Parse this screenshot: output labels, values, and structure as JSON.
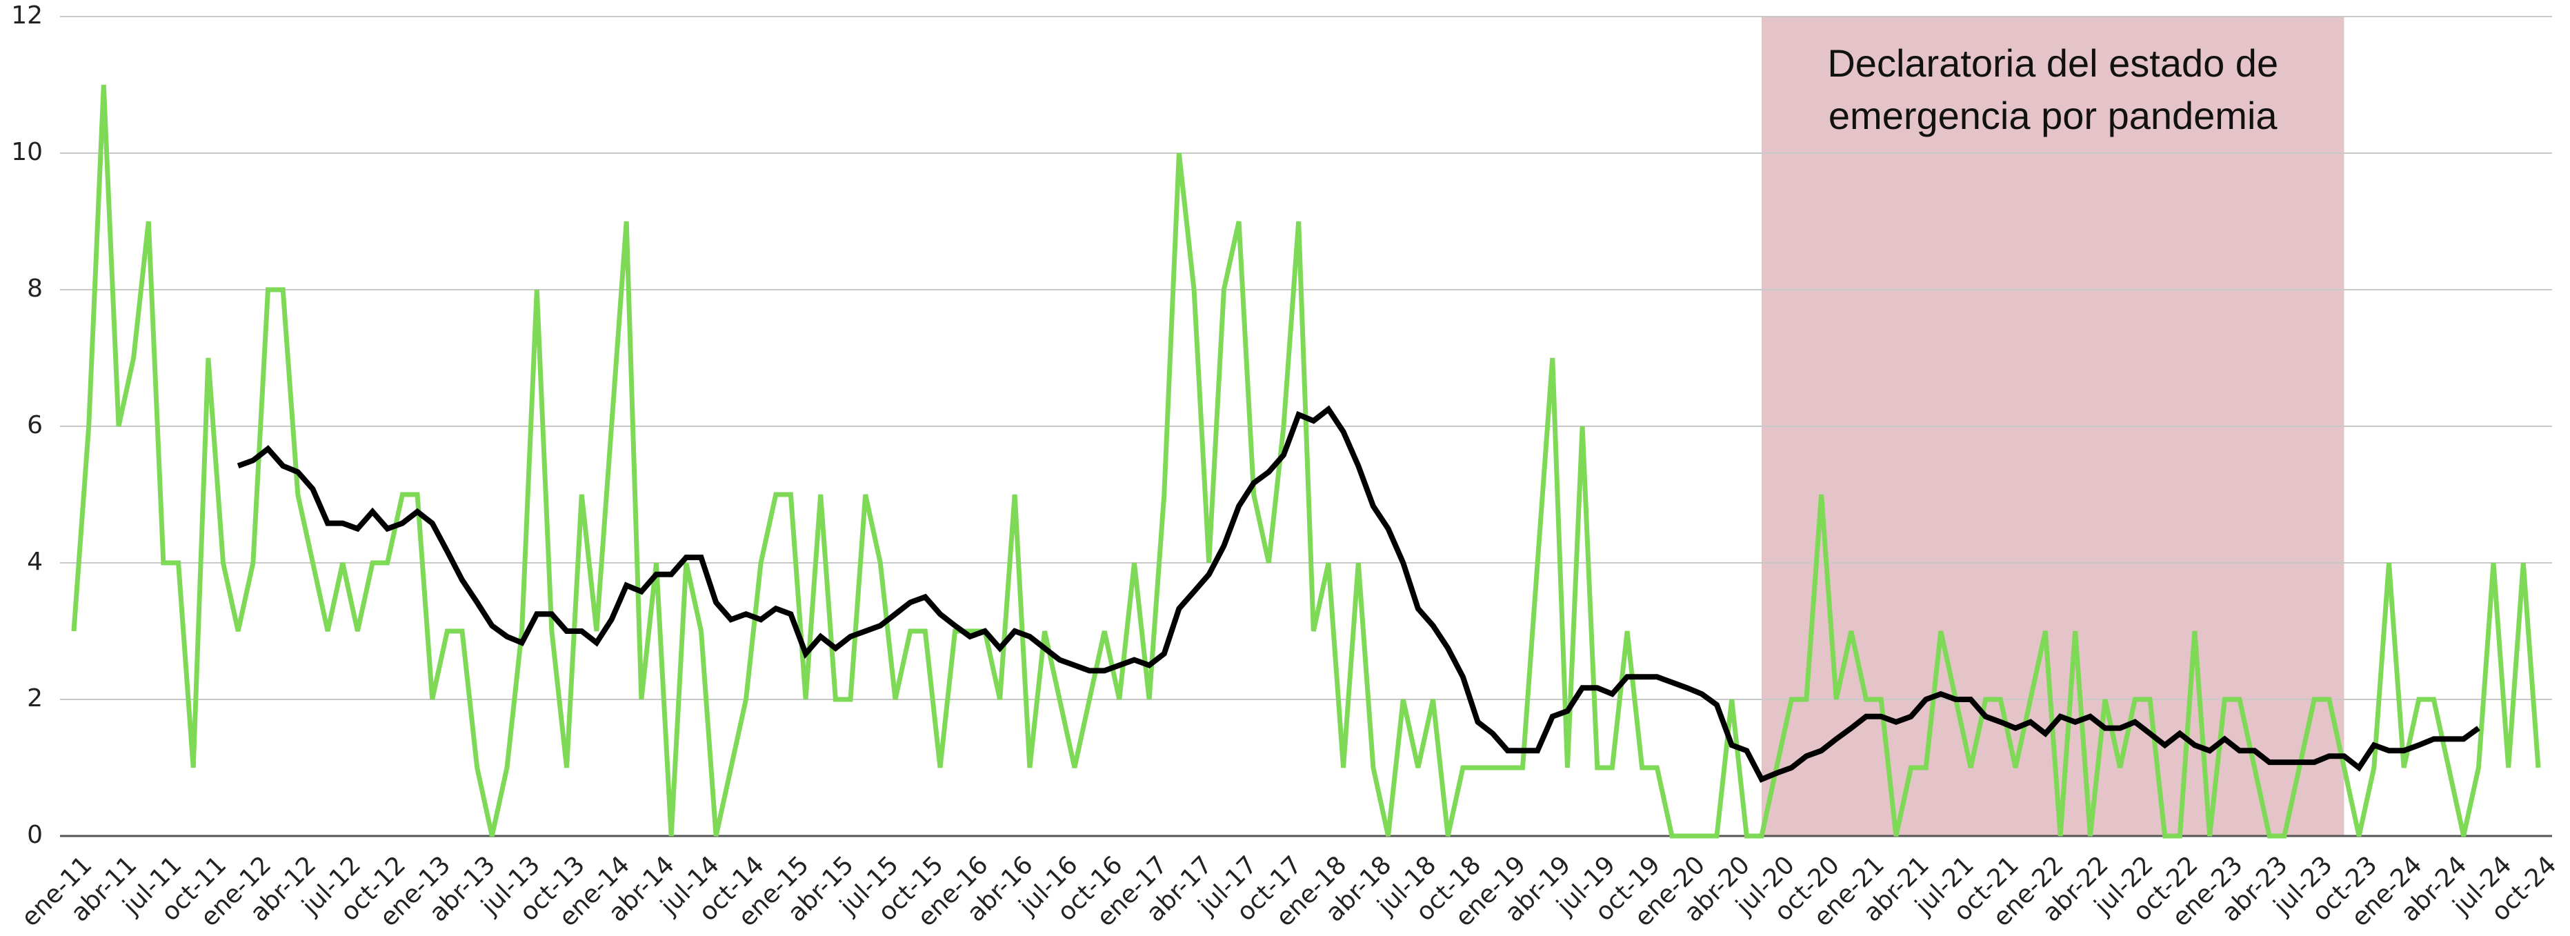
{
  "chart_data": {
    "type": "line",
    "categories": [
      "ene-11",
      null,
      null,
      "abr-11",
      null,
      null,
      "jul-11",
      null,
      null,
      "oct-11",
      null,
      null,
      "ene-12",
      null,
      null,
      "abr-12",
      null,
      null,
      "jul-12",
      null,
      null,
      "oct-12",
      null,
      null,
      "ene-13",
      null,
      null,
      "abr-13",
      null,
      null,
      "jul-13",
      null,
      null,
      "oct-13",
      null,
      null,
      "ene-14",
      null,
      null,
      "abr-14",
      null,
      null,
      "jul-14",
      null,
      null,
      "oct-14",
      null,
      null,
      "ene-15",
      null,
      null,
      "abr-15",
      null,
      null,
      "jul-15",
      null,
      null,
      "oct-15",
      null,
      null,
      "ene-16",
      null,
      null,
      "abr-16",
      null,
      null,
      "jul-16",
      null,
      null,
      "oct-16",
      null,
      null,
      "ene-17",
      null,
      null,
      "abr-17",
      null,
      null,
      "jul-17",
      null,
      null,
      "oct-17",
      null,
      null,
      "ene-18",
      null,
      null,
      "abr-18",
      null,
      null,
      "jul-18",
      null,
      null,
      "oct-18",
      null,
      null,
      "ene-19",
      null,
      null,
      "abr-19",
      null,
      null,
      "jul-19",
      null,
      null,
      "oct-19",
      null,
      null,
      "ene-20",
      null,
      null,
      "abr-20",
      null,
      null,
      "jul-20",
      null,
      null,
      "oct-20",
      null,
      null,
      "ene-21",
      null,
      null,
      "abr-21",
      null,
      null,
      "jul-21",
      null,
      null,
      "oct-21",
      null,
      null,
      "ene-22",
      null,
      null,
      "abr-22",
      null,
      null,
      "jul-22",
      null,
      null,
      "oct-22",
      null,
      null,
      "ene-23",
      null,
      null,
      "abr-23",
      null,
      null,
      "jul-23",
      null,
      null,
      "oct-23",
      null,
      null,
      "ene-24",
      null,
      null,
      "abr-24",
      null,
      null,
      "jul-24",
      null,
      null,
      "oct-24"
    ],
    "series": [
      {
        "color": "#7ed957",
        "values": [
          3,
          6,
          11,
          6,
          7,
          9,
          4,
          4,
          1,
          7,
          4,
          3,
          4,
          8,
          8,
          5,
          4,
          3,
          4,
          3,
          4,
          4,
          5,
          5,
          2,
          3,
          3,
          1,
          0,
          1,
          3,
          8,
          3,
          1,
          5,
          3,
          6,
          9,
          2,
          4,
          0,
          4,
          3,
          0,
          1,
          2,
          4,
          5,
          5,
          2,
          5,
          2,
          2,
          5,
          4,
          2,
          3,
          3,
          1,
          3,
          3,
          3,
          2,
          5,
          1,
          3,
          2,
          1,
          2,
          3,
          2,
          4,
          2,
          5,
          10,
          8,
          4,
          8,
          9,
          5,
          4,
          6,
          9,
          3,
          4,
          1,
          4,
          1,
          0,
          2,
          1,
          2,
          0,
          1,
          1,
          1,
          1,
          1,
          4,
          7,
          1,
          6,
          1,
          1,
          3,
          1,
          1,
          0,
          0,
          0,
          0,
          2,
          0,
          0,
          1,
          2,
          2,
          5,
          2,
          3,
          2,
          2,
          0,
          1,
          1,
          3,
          2,
          1,
          2,
          2,
          1,
          2,
          3,
          0,
          3,
          0,
          2,
          1,
          2,
          2,
          0,
          0,
          3,
          0,
          2,
          2,
          1,
          0,
          0,
          1,
          2,
          2,
          1,
          0,
          1,
          4,
          1,
          2,
          2,
          1,
          0,
          1,
          4,
          1,
          4,
          1
        ]
      },
      {
        "color": "#000000",
        "values": [
          null,
          null,
          null,
          null,
          null,
          null,
          null,
          null,
          null,
          null,
          null,
          5.42,
          5.5,
          5.67,
          5.42,
          5.33,
          5.08,
          4.58,
          4.58,
          4.5,
          4.75,
          4.5,
          4.58,
          4.75,
          4.58,
          4.17,
          3.75,
          3.42,
          3.08,
          2.92,
          2.83,
          3.25,
          3.25,
          3.0,
          3.0,
          2.83,
          3.17,
          3.67,
          3.58,
          3.83,
          3.83,
          4.08,
          4.08,
          3.42,
          3.17,
          3.25,
          3.17,
          3.33,
          3.25,
          2.67,
          2.92,
          2.75,
          2.92,
          3.0,
          3.08,
          3.25,
          3.42,
          3.5,
          3.25,
          3.08,
          2.92,
          3.0,
          2.75,
          3.0,
          2.92,
          2.75,
          2.58,
          2.5,
          2.42,
          2.42,
          2.5,
          2.58,
          2.5,
          2.67,
          3.33,
          3.58,
          3.83,
          4.25,
          4.83,
          5.17,
          5.33,
          5.58,
          6.17,
          6.08,
          6.25,
          5.92,
          5.42,
          4.83,
          4.5,
          4.0,
          3.33,
          3.08,
          2.75,
          2.33,
          1.67,
          1.5,
          1.25,
          1.25,
          1.25,
          1.75,
          1.83,
          2.17,
          2.17,
          2.08,
          2.33,
          2.33,
          2.33,
          2.25,
          2.17,
          2.08,
          1.92,
          1.33,
          1.25,
          0.83,
          0.92,
          1.0,
          1.17,
          1.25,
          1.42,
          1.58,
          1.75,
          1.75,
          1.67,
          1.75,
          2.0,
          2.08,
          2.0,
          2.0,
          1.75,
          1.67,
          1.58,
          1.67,
          1.5,
          1.75,
          1.67,
          1.75,
          1.58,
          1.58,
          1.67,
          1.5,
          1.33,
          1.5,
          1.33,
          1.25,
          1.42,
          1.25,
          1.25,
          1.08,
          1.08,
          1.08,
          1.08,
          1.17,
          1.17,
          1.0,
          1.33,
          1.25,
          1.25,
          1.33,
          1.42,
          1.42,
          1.42,
          1.58,
          null,
          null,
          null,
          null
        ]
      }
    ],
    "ylim": [
      0,
      12
    ],
    "yticks": [
      0,
      2,
      4,
      6,
      8,
      10,
      12
    ],
    "grid": true,
    "shaded_region": {
      "from": 113,
      "to": 152,
      "color": "#e4c4c8",
      "label": [
        "Declaratoria del estado de",
        "emergencia por pandemia"
      ]
    }
  }
}
